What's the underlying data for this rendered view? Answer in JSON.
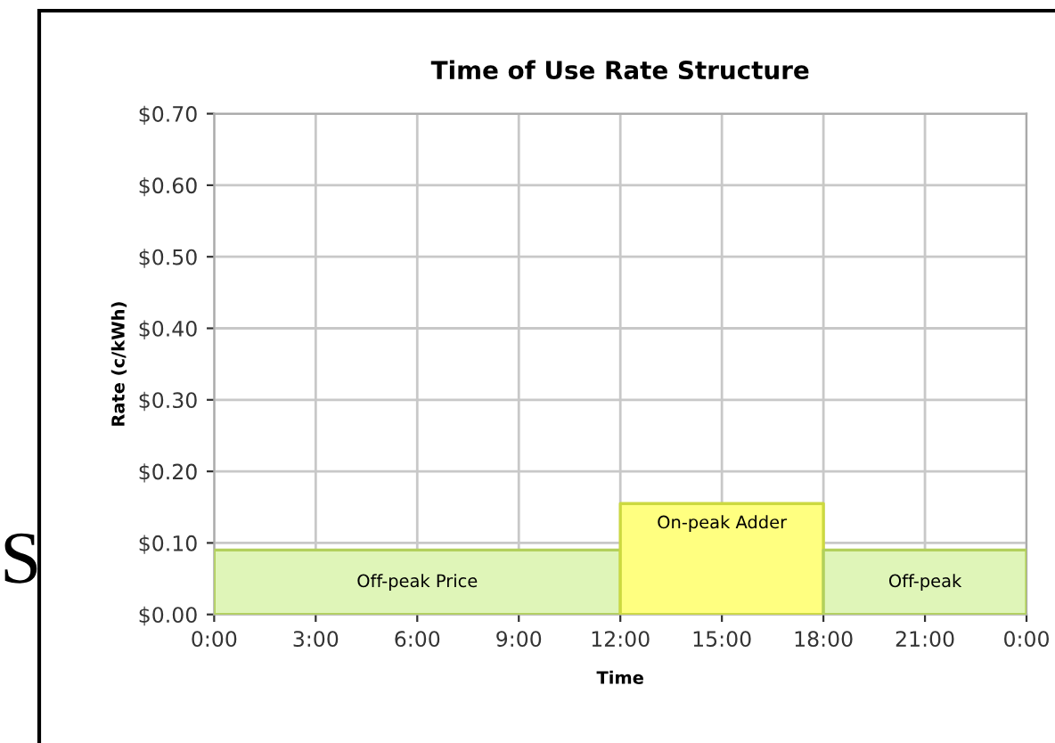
{
  "chart_data": {
    "type": "area",
    "title": "Time of Use Rate Structure",
    "xlabel": "Time",
    "ylabel": "Rate (c/kWh)",
    "series": [
      {
        "name": "Off-peak Price",
        "color": "#dff5b8",
        "x": [
          0,
          12
        ],
        "values": [
          0.09,
          0.09
        ]
      },
      {
        "name": "On-peak Adder",
        "color": "#ffff80",
        "x": [
          12,
          18
        ],
        "values": [
          0.155,
          0.155
        ]
      },
      {
        "name": "Off-peak",
        "color": "#dff5b8",
        "x": [
          18,
          24
        ],
        "values": [
          0.09,
          0.09
        ]
      }
    ],
    "xlim": [
      0,
      24
    ],
    "xticks": [
      {
        "value": 0,
        "label": "0:00"
      },
      {
        "value": 3,
        "label": "3:00"
      },
      {
        "value": 6,
        "label": "6:00"
      },
      {
        "value": 9,
        "label": "9:00"
      },
      {
        "value": 12,
        "label": "12:00"
      },
      {
        "value": 15,
        "label": "15:00"
      },
      {
        "value": 18,
        "label": "18:00"
      },
      {
        "value": 21,
        "label": "21:00"
      },
      {
        "value": 24,
        "label": "0:00"
      }
    ],
    "ylim": [
      0,
      0.7
    ],
    "yticks": [
      {
        "value": 0,
        "label": "$0.00"
      },
      {
        "value": 0.1,
        "label": "$0.10"
      },
      {
        "value": 0.2,
        "label": "$0.20"
      },
      {
        "value": 0.3,
        "label": "$0.30"
      },
      {
        "value": 0.4,
        "label": "$0.40"
      },
      {
        "value": 0.5,
        "label": "$0.50"
      },
      {
        "value": 0.6,
        "label": "$0.60"
      },
      {
        "value": 0.7,
        "label": "$0.70"
      }
    ],
    "grid": true,
    "legend": false,
    "annotations": [
      "S"
    ]
  }
}
